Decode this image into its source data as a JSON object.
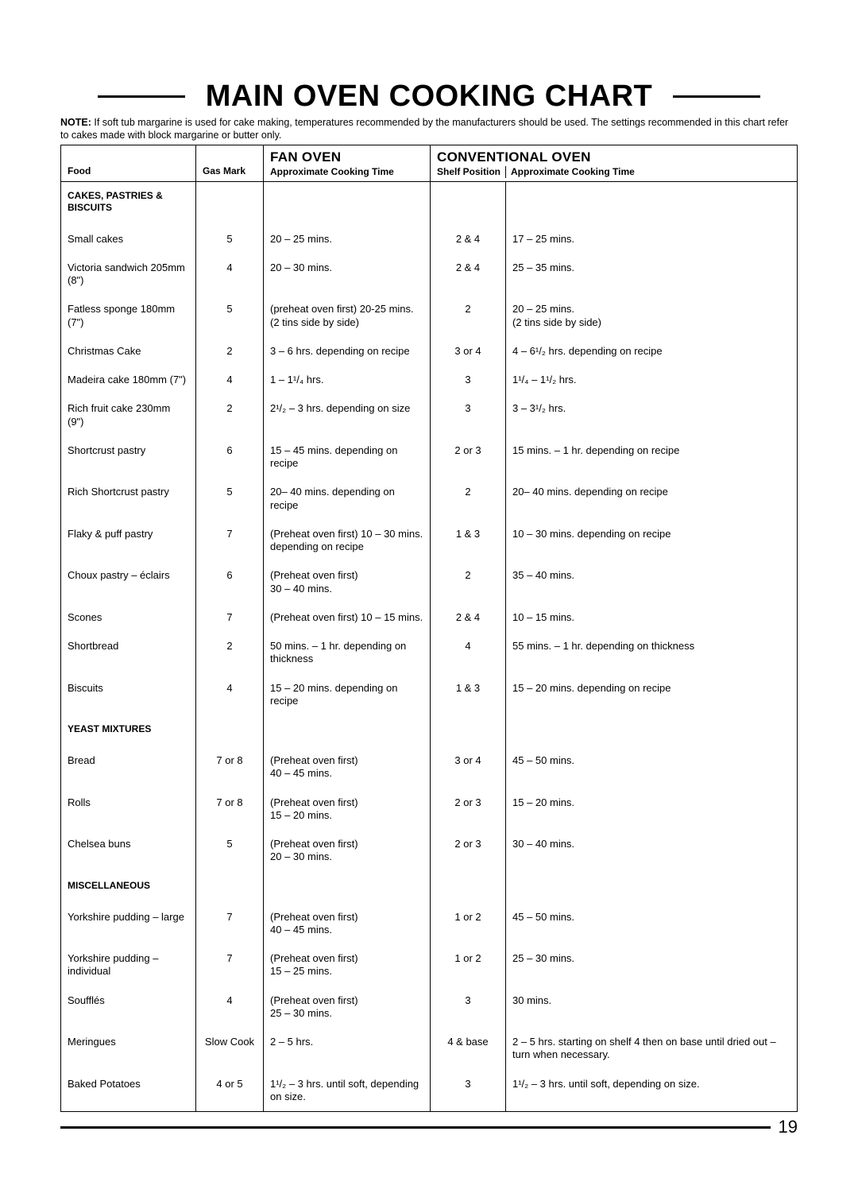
{
  "title": "MAIN OVEN COOKING CHART",
  "note_label": "NOTE:",
  "note_text": " If soft tub margarine is used for cake making, temperatures recommended by the manufacturers should be used. The settings recommended in this chart refer to cakes made with block margarine or butter only.",
  "page_number": "19",
  "headers": {
    "food": "Food",
    "gas": "Gas Mark",
    "fan_top": "FAN OVEN",
    "fan_sub": "Approximate Cooking Time",
    "conv_top": "CONVENTIONAL OVEN",
    "shelf": "Shelf Position",
    "conv_sub": "Approximate Cooking Time"
  },
  "sections": [
    {
      "heading": "CAKES, PASTRIES & BISCUITS",
      "rows": [
        {
          "food": "Small cakes",
          "gas": "5",
          "fan": "20 – 25 mins.",
          "shelf": "2 & 4",
          "conv": "17 – 25 mins."
        },
        {
          "food": "Victoria sandwich 205mm (8\")",
          "gas": "4",
          "fan": "20 – 30 mins.",
          "shelf": "2 & 4",
          "conv": "25 – 35 mins."
        },
        {
          "food": "Fatless sponge 180mm (7\")",
          "gas": "5",
          "fan": "(preheat oven first) 20-25 mins. (2 tins side by side)",
          "shelf": "2",
          "conv": "20 – 25 mins.\n(2 tins side by side)"
        },
        {
          "food": "Christmas Cake",
          "gas": "2",
          "fan": "3 – 6 hrs. depending on recipe",
          "shelf": "3 or 4",
          "conv": "4 – 6¹/₂ hrs. depending on recipe"
        },
        {
          "food": "Madeira cake 180mm (7\")",
          "gas": "4",
          "fan": "1 – 1¹/₄ hrs.",
          "shelf": "3",
          "conv": "1¹/₄ – 1¹/₂ hrs."
        },
        {
          "food": "Rich fruit cake 230mm (9\")",
          "gas": "2",
          "fan": "2¹/₂ – 3 hrs. depending on size",
          "shelf": "3",
          "conv": "3 – 3¹/₂ hrs."
        },
        {
          "food": "Shortcrust pastry",
          "gas": "6",
          "fan": "15 – 45 mins. depending on recipe",
          "shelf": "2 or 3",
          "conv": "15 mins. – 1 hr. depending on recipe"
        },
        {
          "food": "Rich Shortcrust pastry",
          "gas": "5",
          "fan": "20– 40 mins. depending on recipe",
          "shelf": "2",
          "conv": "20– 40 mins. depending on recipe"
        },
        {
          "food": "Flaky & puff pastry",
          "gas": "7",
          "fan": "(Preheat oven first) 10 – 30 mins. depending on recipe",
          "shelf": "1 & 3",
          "conv": "10 – 30 mins. depending on recipe"
        },
        {
          "food": "Choux pastry – éclairs",
          "gas": "6",
          "fan": "(Preheat oven first)\n30 – 40 mins.",
          "shelf": "2",
          "conv": "35 – 40 mins."
        },
        {
          "food": "Scones",
          "gas": "7",
          "fan": "(Preheat oven first) 10 – 15 mins.",
          "shelf": "2 & 4",
          "conv": "10 – 15 mins."
        },
        {
          "food": "Shortbread",
          "gas": "2",
          "fan": "50 mins. – 1 hr. depending on thickness",
          "shelf": "4",
          "conv": "55 mins. – 1 hr. depending on thickness"
        },
        {
          "food": "Biscuits",
          "gas": "4",
          "fan": "15 – 20 mins. depending on recipe",
          "shelf": "1 & 3",
          "conv": "15 – 20 mins. depending on recipe"
        }
      ]
    },
    {
      "heading": "YEAST MIXTURES",
      "rows": [
        {
          "food": "Bread",
          "gas": "7 or 8",
          "fan": "(Preheat oven first)\n40 – 45 mins.",
          "shelf": "3 or 4",
          "conv": "45 – 50 mins."
        },
        {
          "food": "Rolls",
          "gas": "7 or 8",
          "fan": "(Preheat oven first)\n15 – 20 mins.",
          "shelf": "2 or 3",
          "conv": "15 – 20 mins."
        },
        {
          "food": "Chelsea buns",
          "gas": "5",
          "fan": "(Preheat oven first)\n20 – 30 mins.",
          "shelf": "2 or 3",
          "conv": "30 – 40 mins."
        }
      ]
    },
    {
      "heading": "MISCELLANEOUS",
      "rows": [
        {
          "food": "Yorkshire pudding – large",
          "gas": "7",
          "fan": "(Preheat oven first)\n40 – 45 mins.",
          "shelf": "1 or 2",
          "conv": "45 – 50 mins."
        },
        {
          "food": "Yorkshire pudding – individual",
          "gas": "7",
          "fan": "(Preheat oven first)\n15 – 25 mins.",
          "shelf": "1 or 2",
          "conv": "25 – 30 mins."
        },
        {
          "food": "Soufflés",
          "gas": "4",
          "fan": "(Preheat oven first)\n25 – 30 mins.",
          "shelf": "3",
          "conv": "30 mins."
        },
        {
          "food": "Meringues",
          "gas": "Slow Cook",
          "fan": "2 – 5 hrs.",
          "shelf": "4 & base",
          "conv": "2 – 5 hrs. starting on shelf 4 then on base until dried out – turn when necessary."
        },
        {
          "food": "Baked Potatoes",
          "gas": "4 or 5",
          "fan": "1¹/₂ – 3 hrs. until soft, depending on size.",
          "shelf": "3",
          "conv": "1¹/₂ – 3 hrs. until soft, depending on size."
        }
      ]
    }
  ]
}
